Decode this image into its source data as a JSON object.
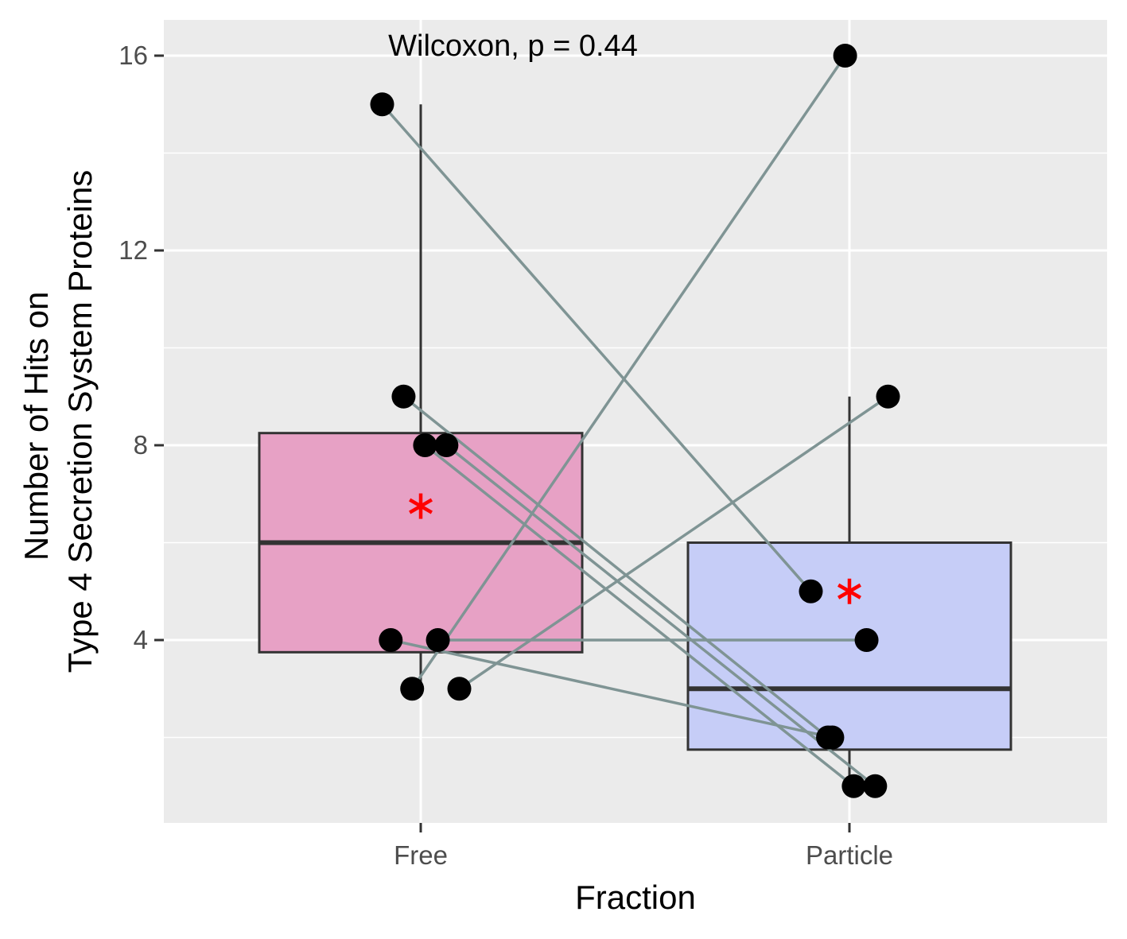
{
  "chart_data": {
    "type": "box",
    "annotation": "Wilcoxon, p = 0.44",
    "xlabel": "Fraction",
    "ylabel_lines": [
      "Number of Hits on",
      "Type 4 Secretion System Proteins"
    ],
    "categories": [
      "Free",
      "Particle"
    ],
    "yticks": [
      4,
      8,
      12,
      16
    ],
    "ylim": [
      0.25,
      16.75
    ],
    "grid": true,
    "boxes": [
      {
        "category": "Free",
        "q1": 3.75,
        "median": 6,
        "q3": 8.25,
        "whisker_low": 3,
        "whisker_high": 15,
        "mean": 6.75,
        "fill": "#e7a1c5"
      },
      {
        "category": "Particle",
        "q1": 1.75,
        "median": 3,
        "q3": 6,
        "whisker_low": 1,
        "whisker_high": 9,
        "mean": 5,
        "fill": "#c6cdf7"
      }
    ],
    "pairs": [
      {
        "free": {
          "jitter": -0.09,
          "y": 15
        },
        "particle": {
          "jitter": -0.09,
          "y": 5
        }
      },
      {
        "free": {
          "jitter": -0.04,
          "y": 9
        },
        "particle": {
          "jitter": -0.05,
          "y": 2
        }
      },
      {
        "free": {
          "jitter": 0.01,
          "y": 8
        },
        "particle": {
          "jitter": 0.01,
          "y": 1
        }
      },
      {
        "free": {
          "jitter": 0.06,
          "y": 8
        },
        "particle": {
          "jitter": 0.06,
          "y": 1
        }
      },
      {
        "free": {
          "jitter": -0.07,
          "y": 4
        },
        "particle": {
          "jitter": -0.04,
          "y": 2
        }
      },
      {
        "free": {
          "jitter": 0.04,
          "y": 4
        },
        "particle": {
          "jitter": 0.04,
          "y": 4
        }
      },
      {
        "free": {
          "jitter": -0.02,
          "y": 3
        },
        "particle": {
          "jitter": -0.01,
          "y": 16
        }
      },
      {
        "free": {
          "jitter": 0.09,
          "y": 3
        },
        "particle": {
          "jitter": 0.09,
          "y": 9
        }
      }
    ],
    "colors": {
      "panel": "#ebebeb",
      "grid": "#ffffff",
      "box_stroke": "#333333",
      "pair_line": "#7f9494",
      "point": "#000000",
      "mean_marker": "#ff0000"
    }
  }
}
